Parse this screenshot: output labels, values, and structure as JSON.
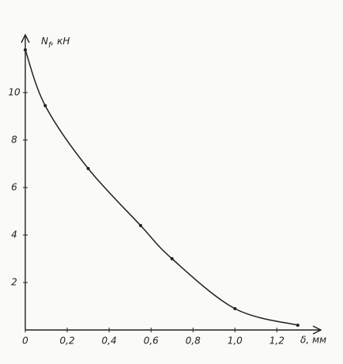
{
  "chart_data": {
    "type": "line",
    "ylabel_parts": [
      "N",
      "f",
      ", кН"
    ],
    "xlabel": "δ, мм",
    "x": [
      0,
      0.095,
      0.3,
      0.55,
      0.7,
      1.0,
      1.3
    ],
    "values": [
      11.8,
      9.45,
      6.8,
      4.4,
      3.0,
      0.9,
      0.2
    ],
    "color": "#222222",
    "xlim": [
      0,
      1.41
    ],
    "ylim": [
      0,
      12.3
    ],
    "xticks": [
      0,
      {
        "value": 0.2,
        "label": "0,2"
      },
      {
        "value": 0.4,
        "label": "0,4"
      },
      {
        "value": 0.6,
        "label": "0,6"
      },
      {
        "value": 0.8,
        "label": "0,8"
      },
      {
        "value": 1.0,
        "label": "1,0"
      },
      {
        "value": 1.2,
        "label": "1,2"
      }
    ],
    "yticks": [
      2,
      4,
      6,
      8,
      10
    ],
    "grid": false
  }
}
